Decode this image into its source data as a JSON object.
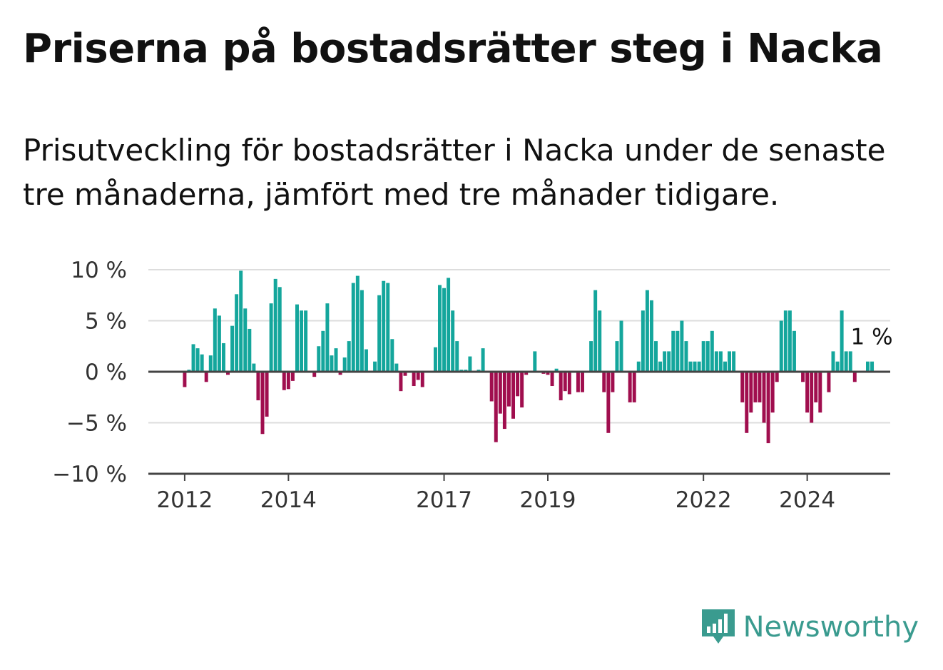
{
  "title": "Priserna på bostadsrätter steg i Nacka",
  "subtitle": "Prisutveckling för bostadsrätter i Nacka under de senaste tre månaderna, jämfört med tre månader tidigare.",
  "brand": "Newsworthy",
  "colors": {
    "positive": "#14a69c",
    "negative": "#a00e4e",
    "zero_line": "#444444",
    "grid": "#dddddd",
    "brand": "#3a9b8f"
  },
  "chart_data": {
    "type": "bar",
    "ylim": [
      -10,
      10
    ],
    "yticks": [
      10,
      5,
      0,
      -5,
      -10
    ],
    "ytick_labels": [
      "10 %",
      "5 %",
      "0 %",
      "−5 %",
      "−10 %"
    ],
    "x_tick_labels": [
      {
        "label": "2012",
        "x": 2012.0
      },
      {
        "label": "2014",
        "x": 2014.0
      },
      {
        "label": "2017",
        "x": 2017.0
      },
      {
        "label": "2019",
        "x": 2019.0
      },
      {
        "label": "2022",
        "x": 2022.0
      },
      {
        "label": "2024",
        "x": 2024.0
      }
    ],
    "x_range": [
      2011.3,
      2025.6
    ],
    "start": 2012.0,
    "step": 0.0833333,
    "values": [
      -1.5,
      0.2,
      2.7,
      2.3,
      1.7,
      -1.0,
      1.6,
      6.2,
      5.5,
      2.8,
      -0.3,
      4.5,
      7.6,
      9.9,
      6.2,
      4.2,
      0.8,
      -2.8,
      -6.1,
      -4.4,
      6.7,
      9.1,
      8.3,
      -1.8,
      -1.7,
      -0.9,
      6.6,
      6.0,
      6.0,
      0.0,
      -0.5,
      2.5,
      4.0,
      6.7,
      1.6,
      2.3,
      -0.3,
      1.4,
      3.0,
      8.7,
      9.4,
      8.0,
      2.2,
      0.0,
      1.0,
      7.5,
      8.9,
      8.7,
      3.2,
      0.8,
      -1.9,
      -0.4,
      0.0,
      -1.4,
      -0.8,
      -1.5,
      0.0,
      0.0,
      2.4,
      8.5,
      8.2,
      9.2,
      6.0,
      3.0,
      0.2,
      0.2,
      1.5,
      0.0,
      0.2,
      2.3,
      0.0,
      -2.9,
      -6.9,
      -4.1,
      -5.6,
      -3.4,
      -4.6,
      -2.4,
      -3.5,
      -0.3,
      0.0,
      2.0,
      -0.1,
      -0.2,
      -0.3,
      -1.4,
      0.3,
      -2.8,
      -1.9,
      -2.2,
      0.0,
      -2.0,
      -2.0,
      0.0,
      3.0,
      8.0,
      6.0,
      -2.0,
      -6.0,
      -2.0,
      3.0,
      5.0,
      0.0,
      -3.0,
      -3.0,
      1.0,
      6.0,
      8.0,
      7.0,
      3.0,
      1.0,
      2.0,
      2.0,
      4.0,
      4.0,
      5.0,
      3.0,
      1.0,
      1.0,
      1.0,
      3.0,
      3.0,
      4.0,
      2.0,
      2.0,
      1.0,
      2.0,
      2.0,
      0.0,
      -3.0,
      -6.0,
      -4.0,
      -3.0,
      -3.0,
      -5.0,
      -7.0,
      -4.0,
      -1.0,
      5.0,
      6.0,
      6.0,
      4.0,
      0.0,
      -1.0,
      -4.0,
      -5.0,
      -3.0,
      -4.0,
      0.0,
      -2.0,
      2.0,
      1.0,
      6.0,
      2.0,
      2.0,
      -1.0,
      0.0,
      0.0,
      1.0,
      1.0
    ],
    "end_label": "1 %"
  }
}
